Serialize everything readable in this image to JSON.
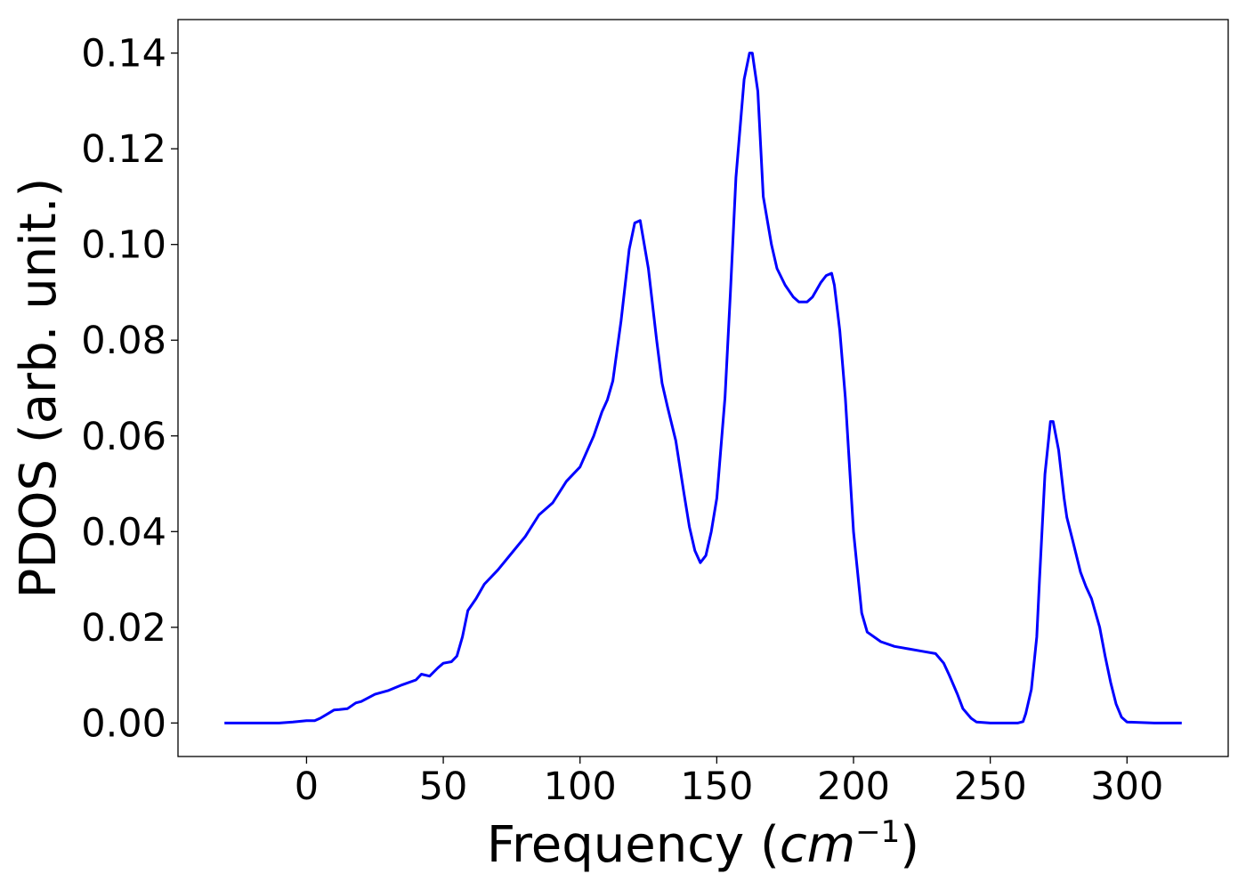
{
  "chart_data": {
    "type": "line",
    "title": "",
    "xlabel_parts": [
      "Frequency (",
      "cm",
      "−1",
      ")"
    ],
    "ylabel": "PDOS (arb. unit.)",
    "xlim": [
      -47,
      337
    ],
    "ylim": [
      -0.007,
      0.147
    ],
    "xticks": [
      0,
      50,
      100,
      150,
      200,
      250,
      300
    ],
    "xtick_labels": [
      "0",
      "50",
      "100",
      "150",
      "200",
      "250",
      "300"
    ],
    "yticks": [
      0.0,
      0.02,
      0.04,
      0.06,
      0.08,
      0.1,
      0.12,
      0.14
    ],
    "ytick_labels": [
      "0.00",
      "0.02",
      "0.04",
      "0.06",
      "0.08",
      "0.10",
      "0.12",
      "0.14"
    ],
    "grid": false,
    "series": [
      {
        "color": "#0000ff",
        "x": [
          -30,
          -20,
          -10,
          -5,
          0,
          3,
          5,
          8,
          10,
          12,
          15,
          18,
          20,
          25,
          30,
          35,
          40,
          42,
          45,
          48,
          50,
          53,
          55,
          57,
          59,
          62,
          65,
          70,
          75,
          80,
          85,
          90,
          95,
          100,
          105,
          108,
          110,
          112,
          115,
          118,
          120,
          122,
          125,
          128,
          130,
          132,
          135,
          138,
          140,
          142,
          144,
          146,
          148,
          150,
          153,
          155,
          157,
          160,
          162,
          163,
          165,
          167,
          170,
          172,
          175,
          178,
          180,
          183,
          185,
          188,
          190,
          192,
          193,
          195,
          197,
          200,
          203,
          205,
          210,
          215,
          220,
          225,
          230,
          233,
          235,
          238,
          240,
          243,
          245,
          250,
          255,
          260,
          262,
          263,
          265,
          267,
          268,
          270,
          272,
          273,
          275,
          277,
          278,
          280,
          283,
          285,
          287,
          290,
          292,
          294,
          296,
          298,
          300,
          310,
          320
        ],
        "y": [
          0.0,
          0.0,
          0.0,
          0.0002,
          0.0005,
          0.0005,
          0.001,
          0.002,
          0.0027,
          0.0028,
          0.003,
          0.0042,
          0.0045,
          0.006,
          0.0068,
          0.008,
          0.009,
          0.0102,
          0.0098,
          0.0115,
          0.0125,
          0.0128,
          0.014,
          0.018,
          0.0235,
          0.026,
          0.029,
          0.032,
          0.0355,
          0.039,
          0.0435,
          0.046,
          0.0505,
          0.0535,
          0.06,
          0.065,
          0.0675,
          0.0715,
          0.084,
          0.099,
          0.1045,
          0.105,
          0.095,
          0.08,
          0.071,
          0.066,
          0.059,
          0.048,
          0.041,
          0.036,
          0.0335,
          0.035,
          0.04,
          0.047,
          0.068,
          0.09,
          0.114,
          0.1345,
          0.14,
          0.14,
          0.132,
          0.11,
          0.1,
          0.095,
          0.0915,
          0.089,
          0.088,
          0.088,
          0.089,
          0.092,
          0.0935,
          0.094,
          0.0915,
          0.082,
          0.068,
          0.04,
          0.023,
          0.019,
          0.017,
          0.016,
          0.0155,
          0.015,
          0.0145,
          0.0125,
          0.01,
          0.006,
          0.003,
          0.001,
          0.0002,
          0.0,
          0.0,
          0.0,
          0.0003,
          0.002,
          0.007,
          0.018,
          0.03,
          0.052,
          0.063,
          0.063,
          0.057,
          0.047,
          0.043,
          0.0385,
          0.0315,
          0.0285,
          0.026,
          0.02,
          0.014,
          0.0085,
          0.004,
          0.0012,
          0.0002,
          0.0,
          0.0
        ]
      }
    ]
  }
}
